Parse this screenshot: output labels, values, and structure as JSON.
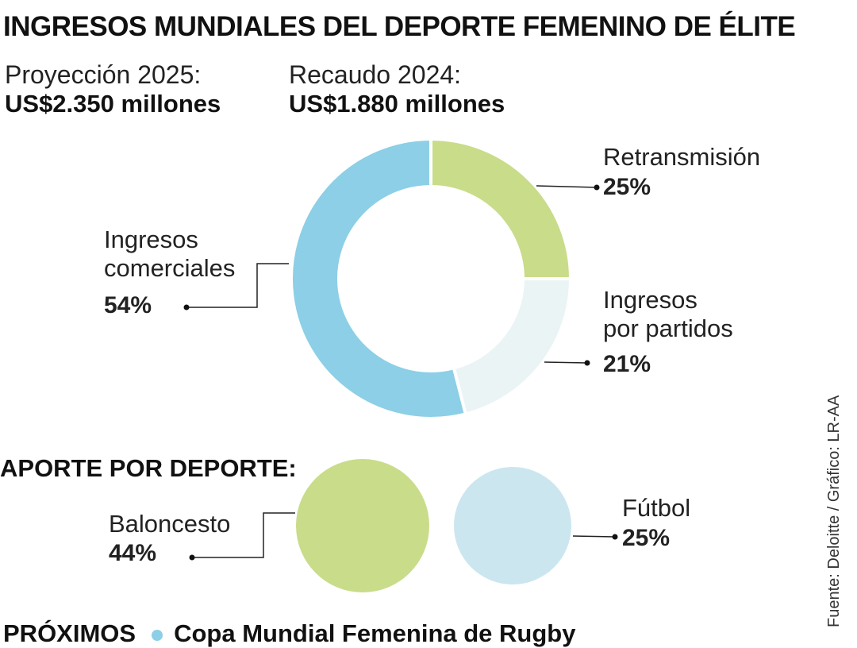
{
  "title": "INGRESOS MUNDIALES DEL DEPORTE FEMENINO DE ÉLITE",
  "kpis": [
    {
      "label": "Proyección 2025:",
      "value": "US$2.350 millones"
    },
    {
      "label": "Recaudo 2024:",
      "value": "US$1.880 millones"
    }
  ],
  "chart_data": [
    {
      "type": "pie",
      "variant": "donut",
      "slices": [
        {
          "label_lines": [
            "Retransmisión"
          ],
          "value": 25,
          "display": "25%",
          "color": "#c9dc8a"
        },
        {
          "label_lines": [
            "Ingresos",
            "por partidos"
          ],
          "value": 21,
          "display": "21%",
          "color": "#eaf4f5"
        },
        {
          "label_lines": [
            "Ingresos",
            "comerciales"
          ],
          "value": 54,
          "display": "54%",
          "color": "#8ccfe6"
        }
      ]
    },
    {
      "type": "bubble",
      "title": "APORTE POR DEPORTE:",
      "items": [
        {
          "label": "Baloncesto",
          "value": 44,
          "display": "44%",
          "color": "#c9dc8a"
        },
        {
          "label": "Fútbol",
          "value": 25,
          "display": "25%",
          "color": "#cbe6ef"
        }
      ]
    }
  ],
  "source": "Fuente: Deloitte / Gráfico: LR-AA",
  "bottom": {
    "label": "PRÓXIMOS",
    "text": "Copa Mundial Femenina de Rugby",
    "dot_color": "#8ccfe6"
  }
}
